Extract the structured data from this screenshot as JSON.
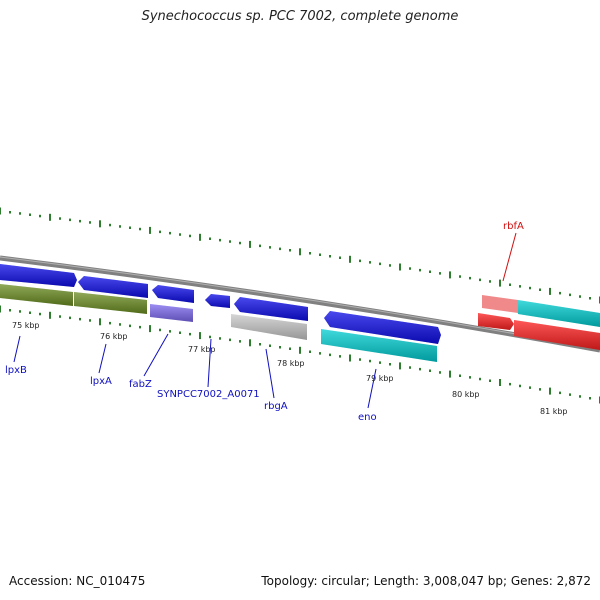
{
  "title": "Synechococcus sp. PCC 7002, complete genome",
  "footer": {
    "accession": "Accession: NC_010475",
    "topology": "Topology: circular; Length: 3,008,047 bp; Genes: 2,872"
  },
  "colors": {
    "forward_gene": "#0c0ce8",
    "reverse_gene": "#0c0ce8",
    "lpx_rna": "#6b8e23",
    "fabZ_rna": "#7b68ee",
    "grey_feature": "#c8c8c8",
    "eno_rna": "#00cdd1",
    "rbfA": "#ff2020",
    "rbfA_pale": "#f08a8a",
    "label_blue": "#1010c0",
    "label_red": "#d01010",
    "tick": "#2e7d2e",
    "backbone": "#808080"
  },
  "kbp_labels": [
    "75 kbp",
    "76 kbp",
    "77 kbp",
    "78 kbp",
    "79 kbp",
    "80 kbp",
    "81 kbp"
  ],
  "genes": [
    {
      "name": "lpxB"
    },
    {
      "name": "lpxA"
    },
    {
      "name": "fabZ"
    },
    {
      "name": "SYNPCC7002_A0071"
    },
    {
      "name": "rbgA"
    },
    {
      "name": "eno"
    },
    {
      "name": "rbfA"
    }
  ]
}
